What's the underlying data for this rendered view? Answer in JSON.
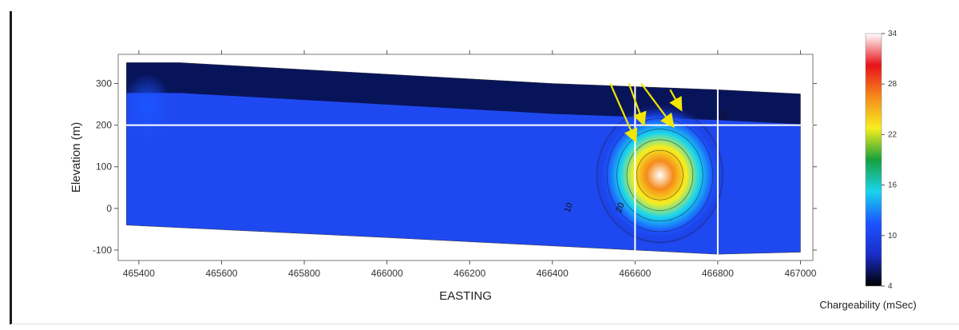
{
  "chart_data": {
    "type": "heatmap",
    "title": "",
    "xlabel": "EASTING",
    "ylabel": "Elevation (m)",
    "xlim": [
      465350,
      467030
    ],
    "ylim": [
      -125,
      370
    ],
    "x_ticks": [
      465400,
      465600,
      465800,
      466000,
      466200,
      466400,
      466600,
      466800,
      467000
    ],
    "y_ticks": [
      -100,
      0,
      100,
      200,
      300
    ],
    "section_top": [
      [
        465370,
        350
      ],
      [
        465500,
        350
      ],
      [
        466400,
        300
      ],
      [
        466800,
        285
      ],
      [
        467000,
        275
      ]
    ],
    "section_bottom": [
      [
        465370,
        -40
      ],
      [
        466000,
        -70
      ],
      [
        466600,
        -100
      ],
      [
        466800,
        -110
      ],
      [
        467000,
        -105
      ]
    ],
    "anomalies": [
      {
        "x": 466660,
        "y": 80,
        "peak": 34,
        "rx": 160,
        "ry": 170
      },
      {
        "x": 465420,
        "y": 245,
        "peak": 12,
        "rx": 60,
        "ry": 80
      }
    ],
    "colorbar": {
      "label": "Chargeability (mSec)",
      "min": 4,
      "max": 34,
      "ticks": [
        4,
        10,
        16,
        22,
        28,
        34
      ],
      "stops": [
        "#000000",
        "#1a2cc8",
        "#1c54ff",
        "#19d4ee",
        "#17a03c",
        "#f7ee1e",
        "#f58a1c",
        "#e8121a",
        "#ffffff"
      ]
    },
    "contour_labels": [
      {
        "text": "10",
        "x": 466445,
        "y": 0
      },
      {
        "text": "20",
        "x": 466570,
        "y": 0
      },
      {
        "text": "10",
        "x": 466820,
        "y": 220
      }
    ],
    "grid_lines": {
      "horizontal": [
        200
      ],
      "vertical": [
        466600,
        466800
      ]
    },
    "arrows": [
      {
        "from": [
          466540,
          300
        ],
        "to": [
          466600,
          165
        ]
      },
      {
        "from": [
          466585,
          300
        ],
        "to": [
          466620,
          205
        ]
      },
      {
        "from": [
          466615,
          300
        ],
        "to": [
          466690,
          200
        ]
      },
      {
        "from": [
          466685,
          285
        ],
        "to": [
          466710,
          240
        ]
      }
    ],
    "arrow_color": "#f2e600",
    "grid_line_color": "#ffffff"
  }
}
